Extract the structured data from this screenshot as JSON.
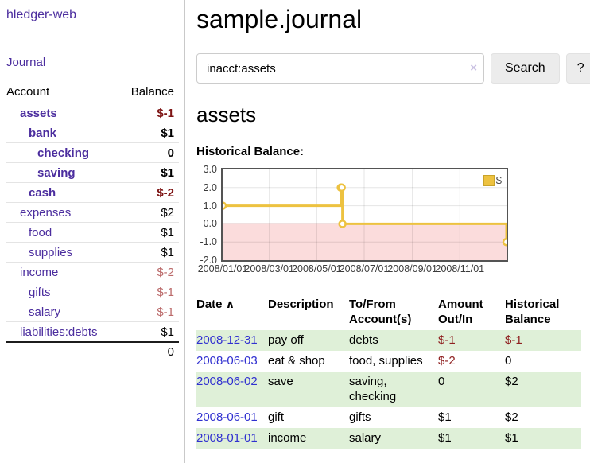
{
  "colors": {
    "link_purple": "#4b2d9e",
    "link_blue": "#3030d0",
    "negative_dark_red": "#7e1515",
    "negative_soft_red": "#bb6a6a",
    "row_stripe_green": "#dff0d8",
    "chart_line_yellow": "#edc240",
    "chart_negative_fill": "#fbdcdc",
    "chart_zero_line": "#8b0000",
    "button_bg": "#ececec"
  },
  "sidebar": {
    "brand": "hledger-web",
    "journal_link": "Journal",
    "table": {
      "col_account": "Account",
      "col_balance": "Balance"
    },
    "accounts": [
      {
        "name": "assets",
        "depth": 1,
        "bold": true,
        "balance": "$-1",
        "balance_style": "neg-bold"
      },
      {
        "name": "bank",
        "depth": 2,
        "bold": true,
        "balance": "$1",
        "balance_style": "bold"
      },
      {
        "name": "checking",
        "depth": 3,
        "bold": true,
        "balance": "0",
        "balance_style": "bold"
      },
      {
        "name": "saving",
        "depth": 3,
        "bold": true,
        "balance": "$1",
        "balance_style": "bold"
      },
      {
        "name": "cash",
        "depth": 2,
        "bold": true,
        "balance": "$-2",
        "balance_style": "neg-bold"
      },
      {
        "name": "expenses",
        "depth": 1,
        "bold": false,
        "balance": "$2",
        "balance_style": "normal"
      },
      {
        "name": "food",
        "depth": 2,
        "bold": false,
        "balance": "$1",
        "balance_style": "normal"
      },
      {
        "name": "supplies",
        "depth": 2,
        "bold": false,
        "balance": "$1",
        "balance_style": "normal"
      },
      {
        "name": "income",
        "depth": 1,
        "bold": false,
        "balance": "$-2",
        "balance_style": "neg-soft"
      },
      {
        "name": "gifts",
        "depth": 2,
        "bold": false,
        "balance": "$-1",
        "balance_style": "neg-soft"
      },
      {
        "name": "salary",
        "depth": 2,
        "bold": false,
        "balance": "$-1",
        "balance_style": "neg-soft",
        "link_color": "blue"
      },
      {
        "name": "liabilities:debts",
        "depth": 1,
        "bold": false,
        "balance": "$1",
        "balance_style": "normal"
      }
    ],
    "total": "0"
  },
  "main": {
    "title": "sample.journal",
    "search": {
      "value": "inacct:assets",
      "clear_icon": "×",
      "button_label": "Search",
      "help_label": "?"
    },
    "account_heading": "assets",
    "chart_label": "Historical Balance:"
  },
  "chart_data": {
    "type": "line",
    "step": true,
    "title": "Historical Balance",
    "x_range": [
      "2008/01/01",
      "2008/12/31"
    ],
    "ylim": [
      -2,
      3
    ],
    "y_ticks": [
      3.0,
      2.0,
      1.0,
      0.0,
      -1.0,
      -2.0
    ],
    "y_tick_labels": [
      "3.0",
      "2.0",
      "1.0",
      "0.0",
      "-1.0",
      "-2.0"
    ],
    "x_tick_labels": [
      "2008/01/01",
      "2008/03/01",
      "2008/05/01",
      "2008/07/01",
      "2008/09/01",
      "2008/11/01"
    ],
    "series": [
      {
        "name": "$",
        "color": "#edc240",
        "points": [
          [
            "2008/01/01",
            1
          ],
          [
            "2008/06/01",
            2
          ],
          [
            "2008/06/02",
            2
          ],
          [
            "2008/06/03",
            0
          ],
          [
            "2008/12/31",
            -1
          ]
        ]
      }
    ],
    "legend_position": "top-right",
    "grid": true,
    "negative_region_fill": "#fbdcdc",
    "zero_line_color": "#8b0000"
  },
  "register": {
    "headers": {
      "date": "Date",
      "sort_icon": "∧",
      "description": "Description",
      "to_from": "To/From Account(s)",
      "amount": "Amount Out/In",
      "balance": "Historical Balance"
    },
    "rows": [
      {
        "date": "2008-12-31",
        "description": "pay off",
        "to_from": "debts",
        "amount": "$-1",
        "amount_negative": true,
        "balance": "$-1",
        "balance_negative": true
      },
      {
        "date": "2008-06-03",
        "description": "eat & shop",
        "to_from": "food, supplies",
        "amount": "$-2",
        "amount_negative": true,
        "balance": "0",
        "balance_negative": false
      },
      {
        "date": "2008-06-02",
        "description": "save",
        "to_from": "saving, checking",
        "amount": "0",
        "amount_negative": false,
        "balance": "$2",
        "balance_negative": false
      },
      {
        "date": "2008-06-01",
        "description": "gift",
        "to_from": "gifts",
        "amount": "$1",
        "amount_negative": false,
        "balance": "$2",
        "balance_negative": false
      },
      {
        "date": "2008-01-01",
        "description": "income",
        "to_from": "salary",
        "amount": "$1",
        "amount_negative": false,
        "balance": "$1",
        "balance_negative": false
      }
    ]
  }
}
